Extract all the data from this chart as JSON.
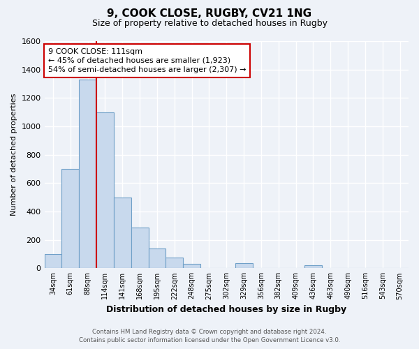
{
  "title": "9, COOK CLOSE, RUGBY, CV21 1NG",
  "subtitle": "Size of property relative to detached houses in Rugby",
  "xlabel": "Distribution of detached houses by size in Rugby",
  "ylabel": "Number of detached properties",
  "bar_color": "#c8d9ed",
  "bar_edge_color": "#6fa0c8",
  "categories": [
    "34sqm",
    "61sqm",
    "88sqm",
    "114sqm",
    "141sqm",
    "168sqm",
    "195sqm",
    "222sqm",
    "248sqm",
    "275sqm",
    "302sqm",
    "329sqm",
    "356sqm",
    "382sqm",
    "409sqm",
    "436sqm",
    "463sqm",
    "490sqm",
    "516sqm",
    "543sqm",
    "570sqm"
  ],
  "values": [
    100,
    700,
    1330,
    1100,
    500,
    285,
    140,
    75,
    30,
    0,
    0,
    35,
    0,
    0,
    0,
    20,
    0,
    0,
    0,
    0,
    0
  ],
  "ylim": [
    0,
    1600
  ],
  "yticks": [
    0,
    200,
    400,
    600,
    800,
    1000,
    1200,
    1400,
    1600
  ],
  "property_line_color": "#cc0000",
  "annotation_line1": "9 COOK CLOSE: 111sqm",
  "annotation_line2": "← 45% of detached houses are smaller (1,923)",
  "annotation_line3": "54% of semi-detached houses are larger (2,307) →",
  "annotation_box_color": "#ffffff",
  "annotation_box_edge": "#cc0000",
  "footer_line1": "Contains HM Land Registry data © Crown copyright and database right 2024.",
  "footer_line2": "Contains public sector information licensed under the Open Government Licence v3.0.",
  "background_color": "#eef2f8",
  "grid_color": "#ffffff"
}
